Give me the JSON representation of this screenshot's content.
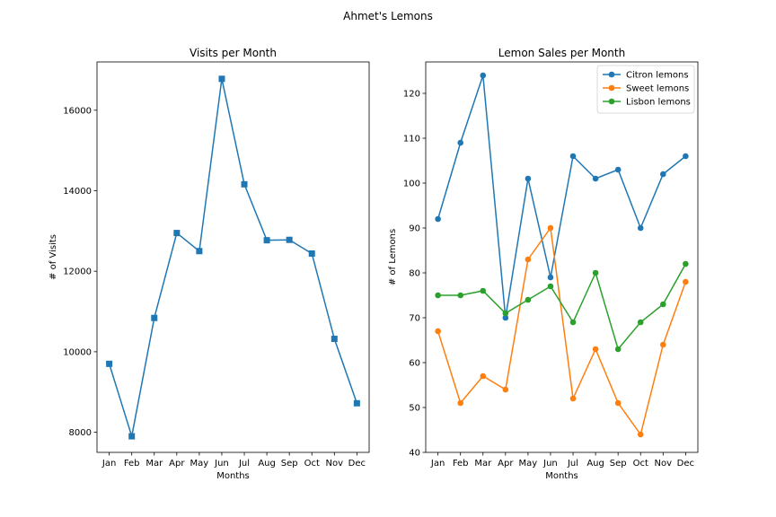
{
  "figure": {
    "title": "Ahmet's Lemons"
  },
  "chart_data": [
    {
      "type": "line",
      "title": "Visits per Month",
      "xlabel": "Months",
      "ylabel": "# of Visits",
      "categories": [
        "Jan",
        "Feb",
        "Mar",
        "Apr",
        "May",
        "Jun",
        "Jul",
        "Aug",
        "Sep",
        "Oct",
        "Nov",
        "Dec"
      ],
      "ylim": [
        7500,
        17200
      ],
      "yticks": [
        8000,
        10000,
        12000,
        14000,
        16000
      ],
      "grid": false,
      "marker": "square",
      "series": [
        {
          "values": [
            9700,
            7900,
            10840,
            12950,
            12500,
            16780,
            14160,
            12770,
            12780,
            12440,
            10320,
            8720
          ],
          "color": "#1f77b4"
        }
      ]
    },
    {
      "type": "line",
      "title": "Lemon Sales per Month",
      "xlabel": "Months",
      "ylabel": "# of Lemons",
      "categories": [
        "Jan",
        "Feb",
        "Mar",
        "Apr",
        "May",
        "Jun",
        "Jul",
        "Aug",
        "Sep",
        "Oct",
        "Nov",
        "Dec"
      ],
      "ylim": [
        40,
        127
      ],
      "yticks": [
        40,
        50,
        60,
        70,
        80,
        90,
        100,
        110,
        120
      ],
      "grid": false,
      "legend": "top-right",
      "marker": "circle",
      "series": [
        {
          "name": "Citron lemons",
          "values": [
            92,
            109,
            124,
            70,
            101,
            79,
            106,
            101,
            103,
            90,
            102,
            106
          ],
          "color": "#1f77b4"
        },
        {
          "name": "Sweet lemons",
          "values": [
            67,
            51,
            57,
            54,
            83,
            90,
            52,
            63,
            51,
            44,
            64,
            78
          ],
          "color": "#ff7f0e"
        },
        {
          "name": "Lisbon lemons",
          "values": [
            75,
            75,
            76,
            71,
            74,
            77,
            69,
            80,
            63,
            69,
            73,
            82
          ],
          "color": "#2ca02c"
        }
      ]
    }
  ]
}
